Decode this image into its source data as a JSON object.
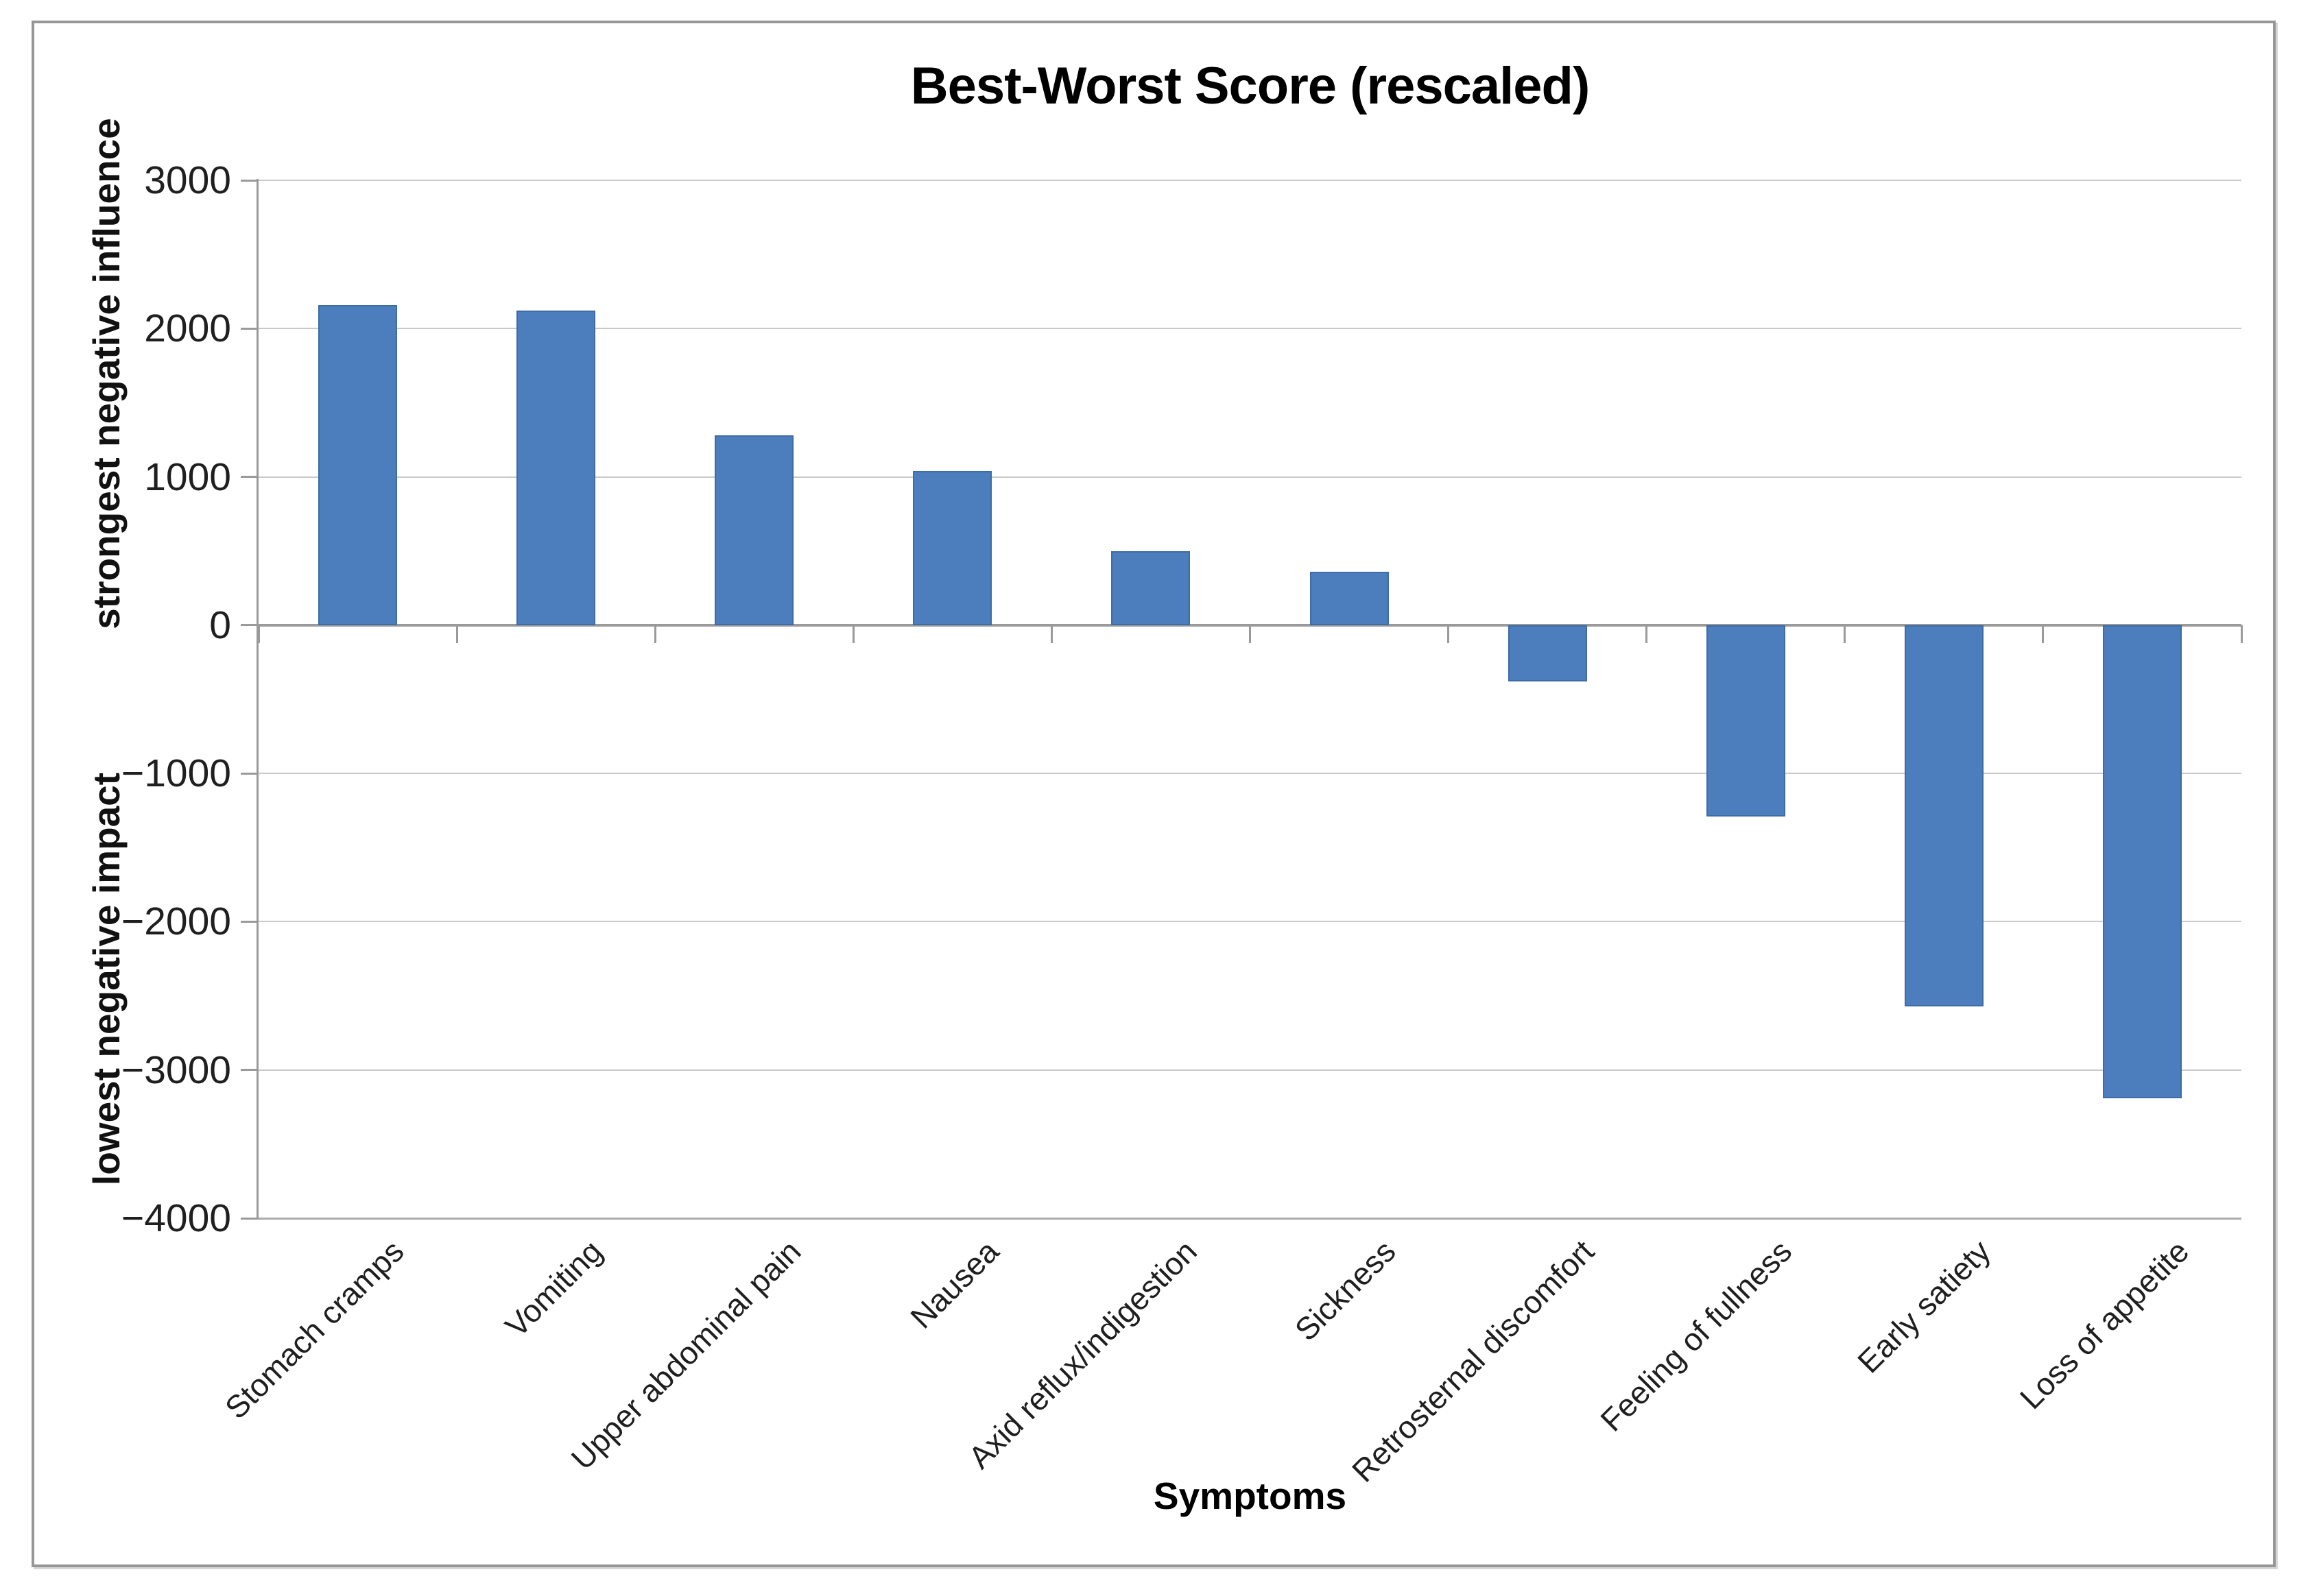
{
  "chart_data": {
    "type": "bar",
    "title": "Best-Worst Score (rescaled)",
    "xlabel": "Symptoms",
    "ylabel_upper": "strongest negative influence",
    "ylabel_lower": "lowest negative impact",
    "categories": [
      "Stomach cramps",
      "Vomiting",
      "Upper abdominal pain",
      "Nausea",
      "Axid reflux/indigestion",
      "Sickness",
      "Retrosternal discomfort",
      "Feeling of fullness",
      "Early satiety",
      "Loss of appetite"
    ],
    "values": [
      2160,
      2120,
      1280,
      1040,
      500,
      360,
      -380,
      -1290,
      -2570,
      -3190
    ],
    "ylim": [
      -4000,
      3000
    ],
    "ytick_step": 1000,
    "yticks": [
      3000,
      2000,
      1000,
      0,
      -1000,
      -2000,
      -3000,
      -4000
    ],
    "ytick_labels": [
      "3000",
      "2000",
      "1000",
      "0",
      "−1000",
      "−2000",
      "−3000",
      "−4000"
    ],
    "grid": true,
    "legend": "none",
    "bar_color": "#4c7ebd",
    "bar_border_color": "#3e6ca6",
    "gridline_color": "#c9c9c9",
    "axis_color": "#9a9a9a",
    "bottom_line_color": "#ababab"
  }
}
